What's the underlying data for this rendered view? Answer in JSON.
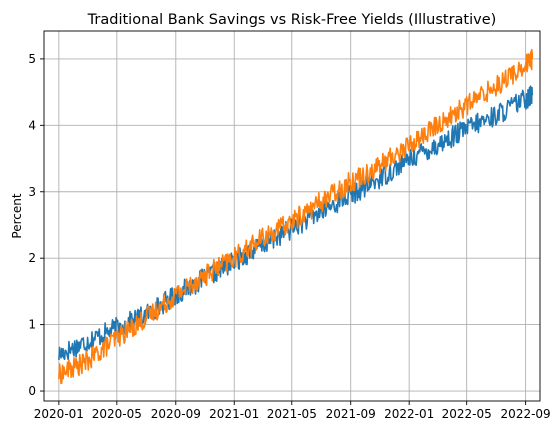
{
  "chart_data": {
    "type": "line",
    "title": "Traditional Bank Savings vs Risk-Free Yields (Illustrative)",
    "xlabel": "",
    "ylabel": "Percent",
    "xlim": [
      "2019-12-01",
      "2022-10-01"
    ],
    "ylim": [
      -0.15,
      5.42
    ],
    "x_ticks": [
      "2020-01",
      "2020-05",
      "2020-09",
      "2021-01",
      "2021-05",
      "2021-09",
      "2022-01",
      "2022-05",
      "2022-09"
    ],
    "y_ticks": [
      0,
      1,
      2,
      3,
      4,
      5
    ],
    "grid": true,
    "legend": "none",
    "series": [
      {
        "color": "#1f77b4",
        "x": [
          "2020-01-01",
          "2020-03-01",
          "2020-05-01",
          "2020-07-01",
          "2020-09-01",
          "2020-11-01",
          "2021-01-01",
          "2021-03-01",
          "2021-05-01",
          "2021-07-01",
          "2021-09-01",
          "2021-11-01",
          "2022-01-01",
          "2022-03-01",
          "2022-05-01",
          "2022-07-01",
          "2022-09-01",
          "2022-09-15"
        ],
        "values": [
          0.55,
          0.75,
          0.95,
          1.15,
          1.45,
          1.7,
          1.95,
          2.2,
          2.45,
          2.7,
          2.95,
          3.2,
          3.5,
          3.7,
          3.95,
          4.15,
          4.4,
          4.45
        ]
      },
      {
        "color": "#ff7f0e",
        "x": [
          "2020-01-01",
          "2020-03-01",
          "2020-05-01",
          "2020-07-01",
          "2020-09-01",
          "2020-11-01",
          "2021-01-01",
          "2021-03-01",
          "2021-05-01",
          "2021-07-01",
          "2021-09-01",
          "2021-11-01",
          "2022-01-01",
          "2022-03-01",
          "2022-05-01",
          "2022-07-01",
          "2022-09-01",
          "2022-09-15"
        ],
        "values": [
          0.25,
          0.45,
          0.8,
          1.1,
          1.45,
          1.75,
          2.0,
          2.3,
          2.55,
          2.85,
          3.15,
          3.4,
          3.7,
          4.0,
          4.3,
          4.6,
          4.9,
          5.0
        ]
      }
    ]
  }
}
